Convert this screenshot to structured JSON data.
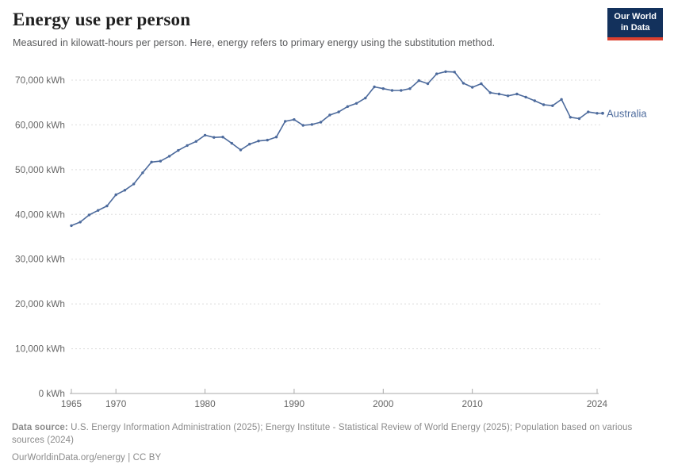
{
  "header": {
    "title": "Energy use per person",
    "subtitle": "Measured in kilowatt-hours per person. Here, energy refers to primary energy using the substitution method."
  },
  "logo": {
    "line1": "Our World",
    "line2": "in Data"
  },
  "colors": {
    "line": "#4c6a9c",
    "grid": "#dddddd",
    "axis": "#a8a8a8",
    "tick_label": "#666666",
    "title": "#1f1f1f",
    "subtitle": "#57585a",
    "footer": "#8a8a8a",
    "logo_bg": "#13315c",
    "logo_red": "#dc402f"
  },
  "chart_data": {
    "type": "line",
    "title": "Energy use per person",
    "subtitle": "Measured in kilowatt-hours per person. Here, energy refers to primary energy using the substitution method.",
    "xlabel": "",
    "ylabel": "kWh",
    "xlim": [
      1965,
      2024
    ],
    "ylim": [
      0,
      70000
    ],
    "grid": "horizontal-dashed",
    "legend_position": "end-of-line-label",
    "x_ticks": [
      1965,
      1970,
      1980,
      1990,
      2000,
      2010,
      2024
    ],
    "y_ticks": [
      {
        "v": 0,
        "label": "0 kWh"
      },
      {
        "v": 10000,
        "label": "10,000 kWh"
      },
      {
        "v": 20000,
        "label": "20,000 kWh"
      },
      {
        "v": 30000,
        "label": "30,000 kWh"
      },
      {
        "v": 40000,
        "label": "40,000 kWh"
      },
      {
        "v": 50000,
        "label": "50,000 kWh"
      },
      {
        "v": 60000,
        "label": "60,000 kWh"
      },
      {
        "v": 70000,
        "label": "70,000 kWh"
      }
    ],
    "series": [
      {
        "name": "Australia",
        "color": "#4c6a9c",
        "years": [
          1965,
          1966,
          1967,
          1968,
          1969,
          1970,
          1971,
          1972,
          1973,
          1974,
          1975,
          1976,
          1977,
          1978,
          1979,
          1980,
          1981,
          1982,
          1983,
          1984,
          1985,
          1986,
          1987,
          1988,
          1989,
          1990,
          1991,
          1992,
          1993,
          1994,
          1995,
          1996,
          1997,
          1998,
          1999,
          2000,
          2001,
          2002,
          2003,
          2004,
          2005,
          2006,
          2007,
          2008,
          2009,
          2010,
          2011,
          2012,
          2013,
          2014,
          2015,
          2016,
          2017,
          2018,
          2019,
          2020,
          2021,
          2022,
          2023,
          2024
        ],
        "values": [
          37500,
          38300,
          39900,
          40900,
          41900,
          44400,
          45400,
          46800,
          49300,
          51700,
          51900,
          53000,
          54300,
          55400,
          56300,
          57700,
          57200,
          57300,
          55900,
          54400,
          55700,
          56400,
          56600,
          57300,
          60800,
          61200,
          59900,
          60100,
          60600,
          62200,
          62900,
          64100,
          64800,
          66000,
          68500,
          68100,
          67700,
          67700,
          68100,
          69900,
          69200,
          71400,
          71900,
          71800,
          69300,
          68400,
          69200,
          67200,
          66900,
          66500,
          66900,
          66200,
          65400,
          64500,
          64300,
          65700,
          61700,
          61400,
          62900,
          62600
        ]
      }
    ]
  },
  "footer": {
    "source_label": "Data source:",
    "source_text": "U.S. Energy Information Administration (2025); Energy Institute - Statistical Review of World Energy (2025); Population based on various sources (2024)",
    "url": "OurWorldinData.org/energy",
    "license_sep": " | ",
    "license": "CC BY"
  }
}
